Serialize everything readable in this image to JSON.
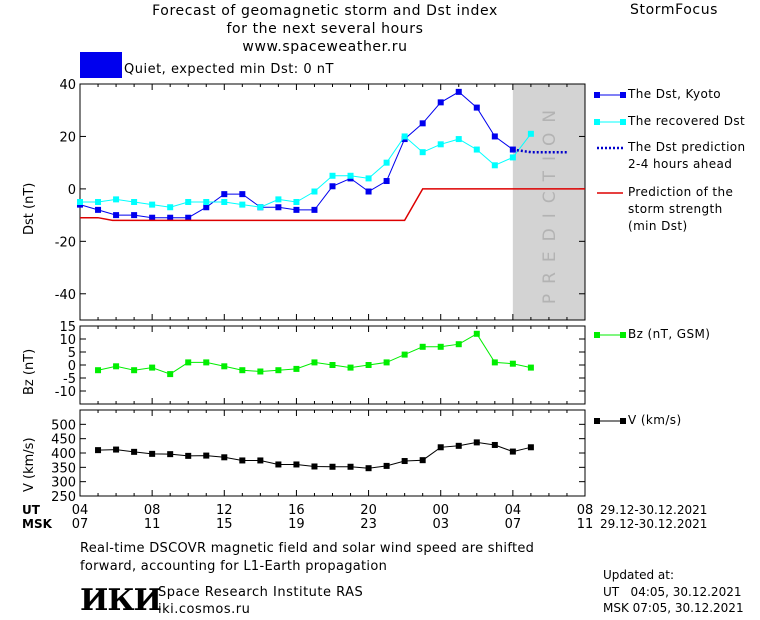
{
  "header": {
    "title_lines": [
      "Forecast of geomagnetic storm and Dst index",
      "for the next several hours",
      "www.spaceweather.ru"
    ],
    "brand": "StormFocus"
  },
  "status": {
    "text": "Quiet, expected min Dst: 0 nT",
    "color": "#0000ee"
  },
  "prediction_band_label": "PREDICTION",
  "legends": {
    "dst_kyoto": "The Dst, Kyoto",
    "dst_recovered": "The recovered Dst",
    "dst_prediction": [
      "The Dst prediction",
      "2-4 hours ahead"
    ],
    "storm_strength": [
      "Prediction of the",
      "storm strength",
      "(min Dst)"
    ],
    "bz": "Bz (nT, GSM)",
    "v": "V (km/s)"
  },
  "xaxis": {
    "ut_label": "UT",
    "msk_label": "MSK",
    "ut_ticks": [
      "04",
      "08",
      "12",
      "16",
      "20",
      "00",
      "04",
      "08"
    ],
    "msk_ticks": [
      "07",
      "11",
      "15",
      "19",
      "23",
      "03",
      "07",
      "11"
    ],
    "date_range_ut": "29.12-30.12.2021",
    "date_range_msk": "29.12-30.12.2021"
  },
  "notes": {
    "line1": "Real-time DSCOVR magnetic field and solar wind speed are shifted",
    "line2": "forward, accounting for L1-Earth propagation"
  },
  "institute": {
    "logo": "ИКИ",
    "name": "Space Research Institute RAS",
    "site": "iki.cosmos.ru"
  },
  "updated": {
    "label": "Updated at:",
    "ut": "UT   04:05, 30.12.2021",
    "msk": "MSK 07:05, 30.12.2021"
  },
  "colors": {
    "dst_kyoto": "#0000ee",
    "dst_recovered": "#00ffff",
    "dst_prediction": "#0000cc",
    "storm_strength": "#dd0000",
    "bz": "#00ee00",
    "v": "#000000",
    "prediction_band": "#d3d3d3"
  },
  "chart_data": [
    {
      "type": "line",
      "ylabel": "Dst (nT)",
      "ylim": [
        -50,
        40
      ],
      "yticks": [
        40,
        20,
        0,
        -20,
        -40
      ],
      "x_unit": "hours from 04 UT 29.12.2021",
      "xlim": [
        0,
        28
      ],
      "prediction_band_x": [
        24,
        28
      ],
      "series": [
        {
          "name": "The Dst, Kyoto",
          "x": [
            0,
            1,
            2,
            3,
            4,
            5,
            6,
            7,
            8,
            9,
            10,
            11,
            12,
            13,
            14,
            15,
            16,
            17,
            18,
            19,
            20,
            21,
            22,
            23,
            24
          ],
          "values": [
            -6,
            -8,
            -10,
            -10,
            -11,
            -11,
            -11,
            -7,
            -2,
            -2,
            -7,
            -7,
            -8,
            -8,
            1,
            4,
            -1,
            3,
            19,
            25,
            33,
            37,
            31,
            20,
            15
          ]
        },
        {
          "name": "The recovered Dst",
          "x": [
            0,
            1,
            2,
            3,
            4,
            5,
            6,
            7,
            8,
            9,
            10,
            11,
            12,
            13,
            14,
            15,
            16,
            17,
            18,
            19,
            20,
            21,
            22,
            23,
            24,
            25
          ],
          "values": [
            -5,
            -5,
            -4,
            -5,
            -6,
            -7,
            -5,
            -5,
            -5,
            -6,
            -7,
            -4,
            -5,
            -1,
            5,
            5,
            4,
            10,
            20,
            14,
            17,
            19,
            15,
            9,
            12,
            21
          ]
        },
        {
          "name": "The Dst prediction",
          "x": [
            24,
            25,
            26,
            27
          ],
          "values": [
            15,
            14,
            14,
            14
          ]
        },
        {
          "name": "Prediction of the storm strength (min Dst)",
          "x": [
            0,
            1,
            1.8,
            18,
            19,
            28
          ],
          "values": [
            -11,
            -11,
            -12,
            -12,
            0,
            0
          ]
        }
      ]
    },
    {
      "type": "line",
      "ylabel": "Bz (nT)",
      "ylim": [
        -15,
        15
      ],
      "yticks": [
        15,
        10,
        5,
        0,
        -5,
        -10
      ],
      "xlim": [
        0,
        28
      ],
      "series": [
        {
          "name": "Bz (nT, GSM)",
          "x": [
            1,
            2,
            3,
            4,
            5,
            6,
            7,
            8,
            9,
            10,
            11,
            12,
            13,
            14,
            15,
            16,
            17,
            18,
            19,
            20,
            21,
            22,
            23,
            24,
            25
          ],
          "values": [
            -2,
            -0.5,
            -2,
            -1,
            -3.5,
            1,
            1,
            -0.5,
            -2,
            -2.5,
            -2,
            -1.5,
            1,
            0,
            -1,
            0,
            1,
            4,
            7,
            7,
            8,
            12,
            1,
            0.5,
            -1
          ]
        }
      ]
    },
    {
      "type": "line",
      "ylabel": "V (km/s)",
      "ylim": [
        250,
        550
      ],
      "yticks": [
        500,
        450,
        400,
        350,
        300,
        250
      ],
      "xlim": [
        0,
        28
      ],
      "series": [
        {
          "name": "V (km/s)",
          "x": [
            1,
            2,
            3,
            4,
            5,
            6,
            7,
            8,
            9,
            10,
            11,
            12,
            13,
            14,
            15,
            16,
            17,
            18,
            19,
            20,
            21,
            22,
            23,
            24,
            25
          ],
          "values": [
            410,
            412,
            404,
            397,
            396,
            390,
            391,
            385,
            374,
            374,
            360,
            360,
            353,
            352,
            352,
            347,
            355,
            372,
            375,
            420,
            425,
            437,
            428,
            405,
            420
          ]
        }
      ]
    }
  ]
}
